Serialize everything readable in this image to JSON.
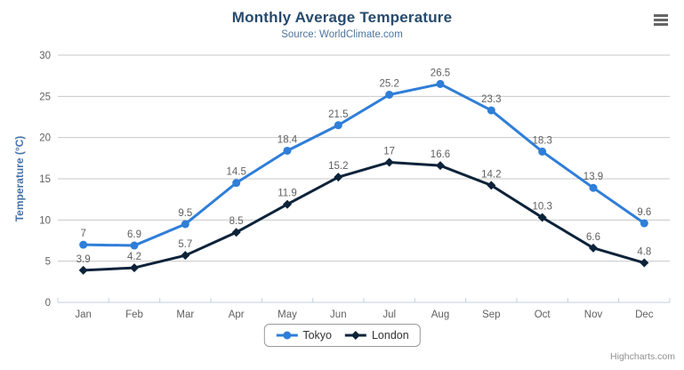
{
  "chart_data": {
    "type": "line",
    "title": "Monthly Average Temperature",
    "subtitle": "Source: WorldClimate.com",
    "categories": [
      "Jan",
      "Feb",
      "Mar",
      "Apr",
      "May",
      "Jun",
      "Jul",
      "Aug",
      "Sep",
      "Oct",
      "Nov",
      "Dec"
    ],
    "series": [
      {
        "name": "Tokyo",
        "color": "#2f7ed8",
        "marker": "circle",
        "values": [
          7,
          6.9,
          9.5,
          14.5,
          18.4,
          21.5,
          25.2,
          26.5,
          23.3,
          18.3,
          13.9,
          9.6
        ]
      },
      {
        "name": "London",
        "color": "#0d233a",
        "marker": "diamond",
        "values": [
          3.9,
          4.2,
          5.7,
          8.5,
          11.9,
          15.2,
          17,
          16.6,
          14.2,
          10.3,
          6.6,
          4.8
        ]
      }
    ],
    "xlabel": "",
    "ylabel": "Temperature (°C)",
    "ylim": [
      0,
      30
    ],
    "yticks": [
      0,
      5,
      10,
      15,
      20,
      25,
      30
    ],
    "grid": true,
    "data_labels": true,
    "legend_position": "bottom",
    "grid_color": "#c8c8c8",
    "axis_line_color": "#c0d0e0",
    "tick_label_color": "#606060",
    "data_label_color": "#606060"
  },
  "credits": {
    "label": "Highcharts.com"
  }
}
